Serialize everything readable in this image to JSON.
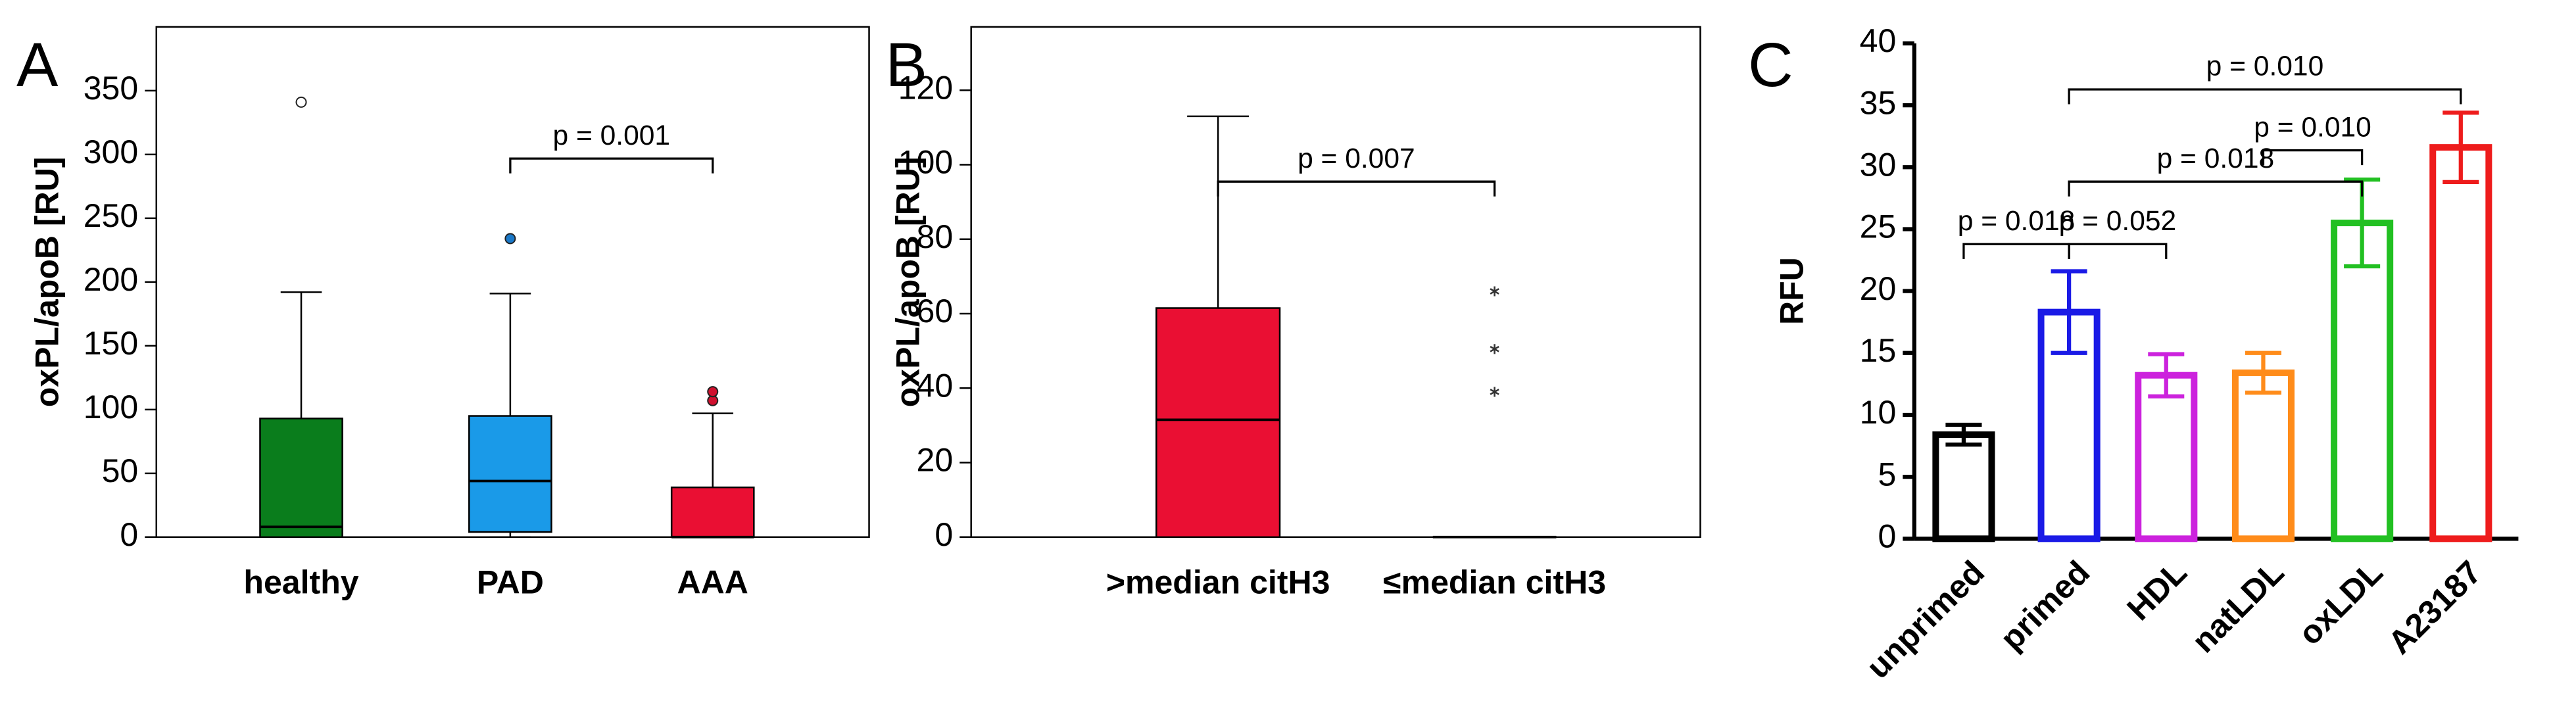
{
  "chart_data": [
    {
      "type": "box",
      "panel": "A",
      "y_label": "oxPL/apoB [RU]",
      "categories": [
        "healthy",
        "PAD",
        "AAA"
      ],
      "colors": [
        "#0a7d1c",
        "#1a9ae8",
        "#ea0f33"
      ],
      "outlier_colors": [
        "#ffffff",
        "#1a78c8",
        "#d0102e"
      ],
      "outlier_marker": "circle",
      "min": [
        0,
        0,
        0
      ],
      "q1": [
        0,
        4,
        0
      ],
      "median": [
        8,
        44,
        0
      ],
      "q3": [
        93,
        95,
        39
      ],
      "max": [
        192,
        191,
        97
      ],
      "outliers": [
        [
          341
        ],
        [
          234
        ],
        [
          107,
          114
        ]
      ],
      "ylim": [
        0,
        400
      ],
      "yticks": [
        0,
        50,
        100,
        150,
        200,
        250,
        300,
        350
      ],
      "annotations": [
        {
          "text": "p = 0.001",
          "groups": [
            "PAD",
            "AAA"
          ]
        }
      ]
    },
    {
      "type": "box",
      "panel": "B",
      "y_label": "oxPL/apoB [RU]",
      "categories": [
        ">median citH3",
        "≤median citH3"
      ],
      "colors": [
        "#ea0f33",
        "#ea0f33"
      ],
      "outlier_colors": [
        "#333333",
        "#333333"
      ],
      "outlier_marker": "star",
      "min": [
        0,
        0
      ],
      "q1": [
        0,
        0
      ],
      "median": [
        31.5,
        0
      ],
      "q3": [
        61.5,
        0
      ],
      "max": [
        113,
        0
      ],
      "outliers": [
        [],
        [
          39,
          50.5,
          66
        ]
      ],
      "ylim": [
        0,
        137
      ],
      "yticks": [
        0,
        20,
        40,
        60,
        80,
        100,
        120
      ],
      "annotations": [
        {
          "text": "p = 0.007",
          "groups": [
            ">median citH3",
            "≤median citH3"
          ]
        }
      ]
    },
    {
      "type": "bar",
      "panel": "C",
      "y_label": "RFU",
      "categories": [
        "unprimed",
        "primed",
        "HDL",
        "natLDL",
        "oxLDL",
        "A23187"
      ],
      "colors": [
        "#000000",
        "#1a1ae6",
        "#cc22dd",
        "#ff8c1a",
        "#22c022",
        "#ee1c1c"
      ],
      "values": [
        8.4,
        18.3,
        13.2,
        13.4,
        25.5,
        31.6
      ],
      "errors": [
        0.8,
        3.3,
        1.7,
        1.6,
        3.5,
        2.8
      ],
      "ylim": [
        0,
        40
      ],
      "yticks": [
        0,
        5,
        10,
        15,
        20,
        25,
        30,
        35,
        40
      ],
      "annotations": [
        {
          "text": "p = 0.018",
          "groups": [
            "unprimed",
            "primed"
          ]
        },
        {
          "text": "p = 0.052",
          "groups": [
            "primed",
            "HDL"
          ]
        },
        {
          "text": "p = 0.018",
          "groups": [
            "primed",
            "oxLDL"
          ]
        },
        {
          "text": "p = 0.010",
          "groups": [
            "natLDL",
            "oxLDL"
          ]
        },
        {
          "text": "p = 0.010",
          "groups": [
            "primed",
            "A23187"
          ]
        }
      ]
    }
  ]
}
